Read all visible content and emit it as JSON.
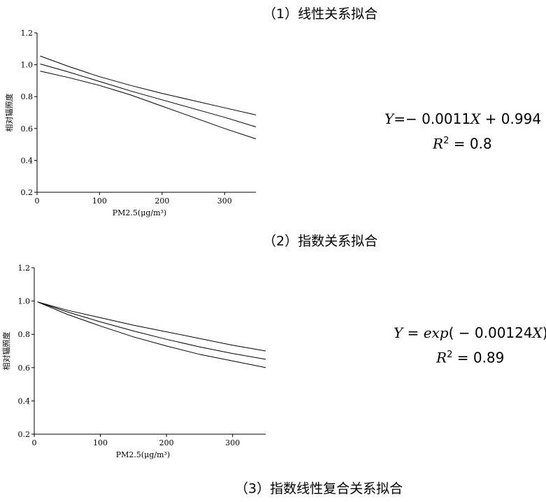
{
  "headings": {
    "h1": "（1）线性关系拟合",
    "h2": "（2）指数关系拟合",
    "h3": "（3）指数线性复合关系拟合"
  },
  "equations": {
    "linear": {
      "lhs": "Y",
      "rhs": "=− 0.0011",
      "x": "X",
      "tail": " + 0.994",
      "r2_label": "R",
      "r2_value": " = 0.8"
    },
    "exponential": {
      "lhs": "Y",
      "rhs_pre": " = ",
      "fn": "exp",
      "arg": "( − 0.00124",
      "x": "X",
      "close": ")",
      "r2_label": "R",
      "r2_value": " = 0.89"
    }
  },
  "chart_data": [
    {
      "type": "line",
      "xlabel": "PM2.5(μg/m³)",
      "ylabel": "相对辐照度",
      "xlim": [
        0,
        350
      ],
      "ylim": [
        0.2,
        1.2
      ],
      "xticks": [
        0,
        100,
        200,
        300
      ],
      "yticks": [
        0.2,
        0.4,
        0.6,
        0.8,
        1.0,
        1.2
      ],
      "ytick_labels": [
        "0.2",
        "0.4",
        "0.6",
        "0.8",
        "1.0",
        "1.2"
      ],
      "xtick_labels": [
        "0",
        "100",
        "200",
        "300"
      ],
      "series": [
        {
          "x": [
            5,
            50,
            100,
            150,
            200,
            250,
            300,
            350
          ],
          "y": [
            1.055,
            0.99,
            0.925,
            0.87,
            0.82,
            0.775,
            0.73,
            0.685
          ]
        },
        {
          "x": [
            5,
            50,
            100,
            150,
            200,
            250,
            300,
            350
          ],
          "y": [
            1.005,
            0.955,
            0.895,
            0.835,
            0.78,
            0.725,
            0.67,
            0.61
          ]
        },
        {
          "x": [
            5,
            50,
            100,
            150,
            200,
            250,
            300,
            350
          ],
          "y": [
            0.96,
            0.92,
            0.87,
            0.81,
            0.74,
            0.67,
            0.6,
            0.535
          ]
        }
      ],
      "grid": false
    },
    {
      "type": "line",
      "xlabel": "PM2.5(μg/m³)",
      "ylabel": "相对辐照度",
      "xlim": [
        0,
        350
      ],
      "ylim": [
        0.2,
        1.2
      ],
      "xticks": [
        0,
        100,
        200,
        300
      ],
      "yticks": [
        0.2,
        0.4,
        0.6,
        0.8,
        1.0,
        1.2
      ],
      "ytick_labels": [
        "0.2",
        "0.4",
        "0.6",
        "0.8",
        "1.0",
        "1.2"
      ],
      "xtick_labels": [
        "0",
        "100",
        "200",
        "300"
      ],
      "series": [
        {
          "x": [
            5,
            50,
            100,
            150,
            200,
            250,
            300,
            350
          ],
          "y": [
            0.995,
            0.945,
            0.9,
            0.855,
            0.815,
            0.775,
            0.735,
            0.7
          ]
        },
        {
          "x": [
            5,
            50,
            100,
            150,
            200,
            250,
            300,
            350
          ],
          "y": [
            0.995,
            0.935,
            0.875,
            0.82,
            0.77,
            0.725,
            0.685,
            0.65
          ]
        },
        {
          "x": [
            5,
            50,
            100,
            150,
            200,
            250,
            300,
            350
          ],
          "y": [
            0.995,
            0.92,
            0.85,
            0.785,
            0.73,
            0.68,
            0.64,
            0.6
          ]
        }
      ],
      "grid": false
    }
  ]
}
